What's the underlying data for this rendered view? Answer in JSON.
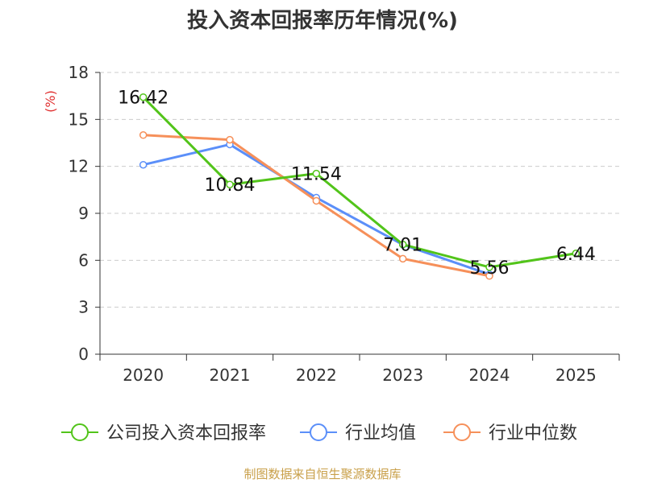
{
  "chart_data": {
    "type": "line",
    "title": "投入资本回报率历年情况(%)",
    "ylabel": "(%)",
    "xlabel": "",
    "categories": [
      "2020",
      "2021",
      "2022",
      "2023",
      "2024",
      "2025"
    ],
    "ylim": [
      0,
      18
    ],
    "yticks": [
      0,
      3,
      6,
      9,
      12,
      15,
      18
    ],
    "grid": true,
    "legend_position": "bottom",
    "series": [
      {
        "name": "公司投入资本回报率",
        "color": "#52c41a",
        "values": [
          16.42,
          10.84,
          11.54,
          7.01,
          5.56,
          6.44
        ],
        "labels": [
          "16.42",
          "10.84",
          "11.54",
          "7.01",
          "5.56",
          "6.44"
        ]
      },
      {
        "name": "行业均值",
        "color": "#5b8ff9",
        "values": [
          12.1,
          13.4,
          10.0,
          7.0,
          5.1,
          null
        ]
      },
      {
        "name": "行业中位数",
        "color": "#f6905a",
        "values": [
          14.0,
          13.7,
          9.8,
          6.1,
          5.0,
          null
        ]
      }
    ]
  },
  "source_text": "制图数据来自恒生聚源数据库",
  "colors": {
    "axis": "#333333",
    "grid": "#cccccc",
    "ylabel": "#e03030",
    "source": "#c9a04a"
  }
}
